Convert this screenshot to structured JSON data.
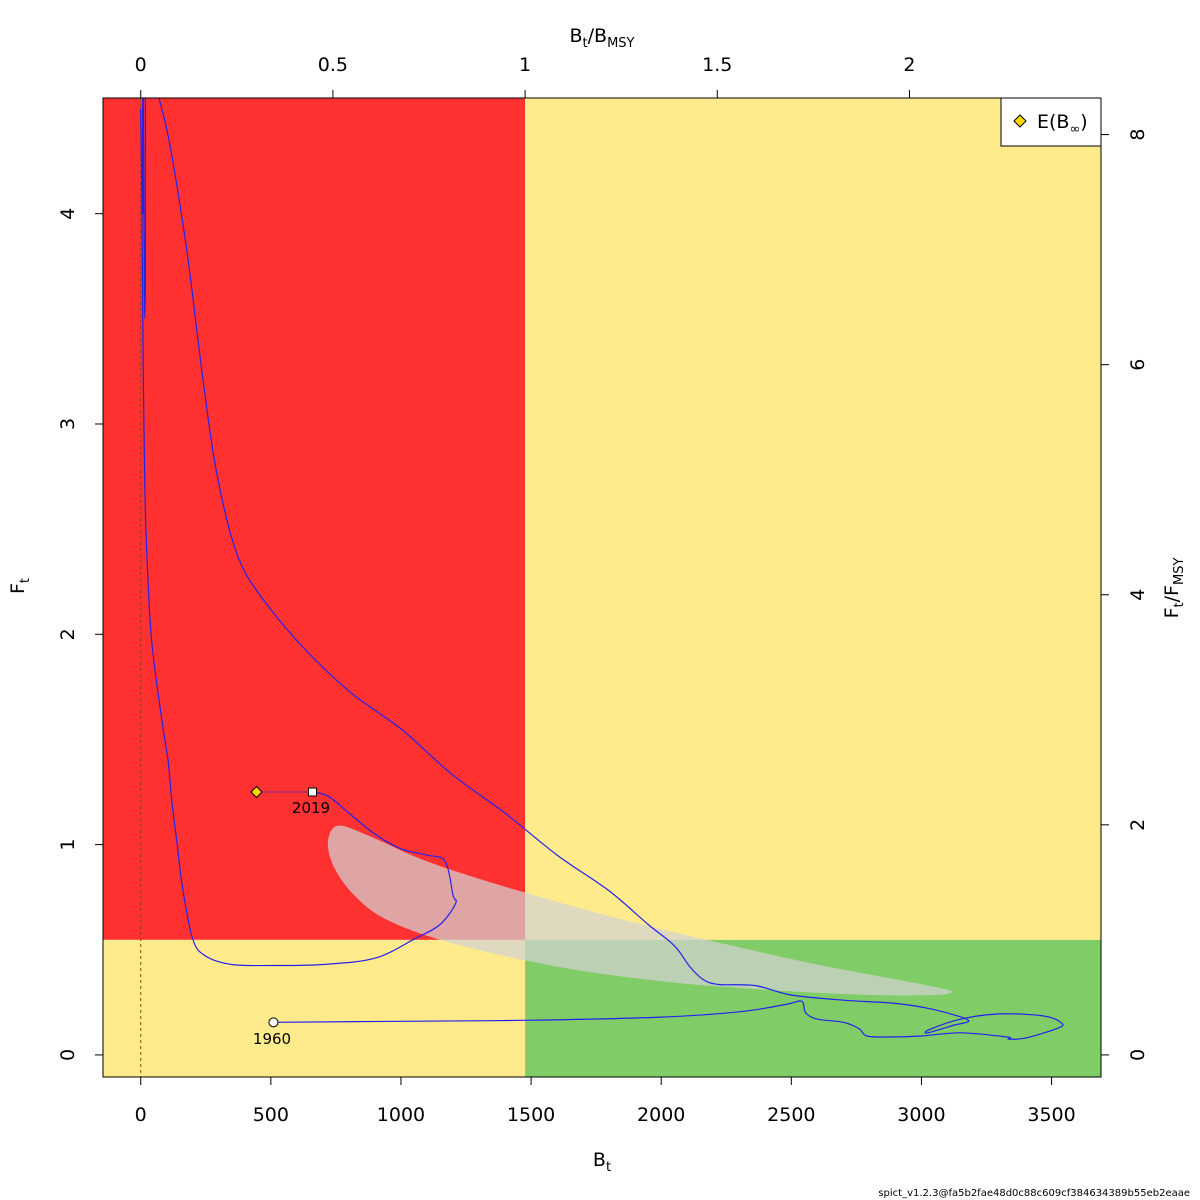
{
  "chart_data": {
    "type": "line",
    "title": "",
    "x_axis": {
      "label_main": "B",
      "label_sub": "t",
      "range": [
        -145,
        3690
      ],
      "ticks": [
        0,
        500,
        1000,
        1500,
        2000,
        2500,
        3000,
        3500
      ],
      "tick_labels": [
        "0",
        "500",
        "1000",
        "1500",
        "2000",
        "2500",
        "3000",
        "3500"
      ]
    },
    "y_axis": {
      "label_main": "F",
      "label_sub": "t",
      "range": [
        -0.105,
        4.55
      ],
      "ticks": [
        0,
        1,
        2,
        3,
        4
      ],
      "tick_labels": [
        "0",
        "1",
        "2",
        "3",
        "4"
      ]
    },
    "top_axis": {
      "label_main": "B",
      "label_sub": "t",
      "label_sep": "/B",
      "label_sub2": "MSY",
      "bmsy": 1477,
      "ticks": [
        0,
        0.5,
        1,
        1.5,
        2
      ],
      "tick_labels": [
        "0",
        "0.5",
        "1",
        "1.5",
        "2"
      ]
    },
    "right_axis": {
      "label_main": "F",
      "label_sub": "t",
      "label_sep": "/F",
      "label_sub2": "MSY",
      "fmsy": 0.547,
      "ticks": [
        0,
        2,
        4,
        6,
        8
      ],
      "tick_labels": [
        "0",
        "2",
        "4",
        "6",
        "8"
      ]
    },
    "zones": {
      "bmsy": 1477,
      "fmsy": 0.547,
      "overfishing_overfished_color": "#ff3131",
      "warning_color": "#ffeb8c",
      "healthy_color": "#80cc66"
    },
    "series": [
      {
        "type": "line",
        "color": "#2222ee",
        "points": [
          [
            510,
            0.155
          ],
          [
            1000,
            0.16
          ],
          [
            1500,
            0.165
          ],
          [
            2000,
            0.18
          ],
          [
            2300,
            0.205
          ],
          [
            2480,
            0.24
          ],
          [
            2540,
            0.255
          ],
          [
            2555,
            0.2
          ],
          [
            2600,
            0.17
          ],
          [
            2700,
            0.155
          ],
          [
            2760,
            0.125
          ],
          [
            2790,
            0.09
          ],
          [
            2870,
            0.085
          ],
          [
            3000,
            0.09
          ],
          [
            3150,
            0.105
          ],
          [
            3330,
            0.085
          ],
          [
            3335,
            0.075
          ],
          [
            3400,
            0.08
          ],
          [
            3520,
            0.125
          ],
          [
            3540,
            0.15
          ],
          [
            3470,
            0.185
          ],
          [
            3300,
            0.195
          ],
          [
            3150,
            0.17
          ],
          [
            3030,
            0.12
          ],
          [
            3025,
            0.105
          ],
          [
            3120,
            0.14
          ],
          [
            3180,
            0.165
          ],
          [
            3050,
            0.215
          ],
          [
            2900,
            0.245
          ],
          [
            2700,
            0.26
          ],
          [
            2500,
            0.285
          ],
          [
            2360,
            0.33
          ],
          [
            2220,
            0.335
          ],
          [
            2160,
            0.36
          ],
          [
            2110,
            0.42
          ],
          [
            2050,
            0.52
          ],
          [
            1950,
            0.62
          ],
          [
            1800,
            0.78
          ],
          [
            1600,
            0.95
          ],
          [
            1400,
            1.15
          ],
          [
            1200,
            1.33
          ],
          [
            1000,
            1.55
          ],
          [
            800,
            1.73
          ],
          [
            600,
            1.97
          ],
          [
            450,
            2.2
          ],
          [
            380,
            2.35
          ],
          [
            330,
            2.55
          ],
          [
            280,
            2.85
          ],
          [
            230,
            3.3
          ],
          [
            180,
            3.8
          ],
          [
            130,
            4.2
          ],
          [
            100,
            4.4
          ],
          [
            70,
            4.55
          ]
        ]
      },
      {
        "type": "line",
        "color": "#2222ee",
        "points": [
          [
            660,
            1.25
          ],
          [
            720,
            1.23
          ],
          [
            800,
            1.15
          ],
          [
            900,
            1.05
          ],
          [
            1000,
            0.98
          ],
          [
            1100,
            0.95
          ],
          [
            1170,
            0.92
          ],
          [
            1200,
            0.76
          ],
          [
            1210,
            0.72
          ],
          [
            1150,
            0.62
          ],
          [
            1050,
            0.55
          ],
          [
            900,
            0.46
          ],
          [
            700,
            0.43
          ],
          [
            500,
            0.425
          ],
          [
            350,
            0.43
          ],
          [
            250,
            0.47
          ],
          [
            200,
            0.55
          ],
          [
            160,
            0.8
          ],
          [
            140,
            1.0
          ],
          [
            120,
            1.2
          ],
          [
            105,
            1.4
          ],
          [
            80,
            1.6
          ],
          [
            40,
            2.0
          ],
          [
            20,
            2.5
          ],
          [
            12,
            3.0
          ],
          [
            8,
            3.5
          ],
          [
            5,
            4.0
          ],
          [
            0,
            4.5
          ]
        ]
      },
      {
        "type": "line",
        "color": "#2222ee",
        "points": [
          [
            10,
            4.55
          ],
          [
            12,
            4.1
          ],
          [
            14,
            3.7
          ],
          [
            16,
            3.5
          ],
          [
            18,
            3.7
          ],
          [
            18,
            4.2
          ],
          [
            17,
            4.55
          ],
          [
            8,
            4.55
          ],
          [
            8,
            4.0
          ]
        ]
      }
    ],
    "confidence_ellipse": {
      "color": "#d3d3d3",
      "points": [
        [
          3110,
          0.295
        ],
        [
          3050,
          0.285
        ],
        [
          2800,
          0.285
        ],
        [
          2400,
          0.31
        ],
        [
          2000,
          0.35
        ],
        [
          1600,
          0.42
        ],
        [
          1200,
          0.53
        ],
        [
          950,
          0.64
        ],
        [
          820,
          0.76
        ],
        [
          740,
          0.9
        ],
        [
          720,
          1.02
        ],
        [
          760,
          1.09
        ],
        [
          880,
          1.04
        ],
        [
          1100,
          0.92
        ],
        [
          1400,
          0.8
        ],
        [
          1800,
          0.66
        ],
        [
          2200,
          0.54
        ],
        [
          2600,
          0.43
        ],
        [
          2900,
          0.36
        ],
        [
          3100,
          0.31
        ]
      ]
    },
    "points": {
      "start": {
        "x": 510,
        "y": 0.155,
        "label": "1960"
      },
      "end": {
        "x": 660,
        "y": 1.25,
        "label": "2019"
      },
      "equilibrium": {
        "x": 445,
        "y": 1.25
      }
    },
    "b_zero_line": {
      "x": 0
    },
    "legend": {
      "position": "top-right",
      "entry_main": "E(B",
      "entry_sub": "∞",
      "entry_close": ")",
      "marker_color": "#ffd700"
    },
    "footer": "spict_v1.2.3@fa5b2fae48d0c88c609cf384634389b55eb2eaae"
  }
}
